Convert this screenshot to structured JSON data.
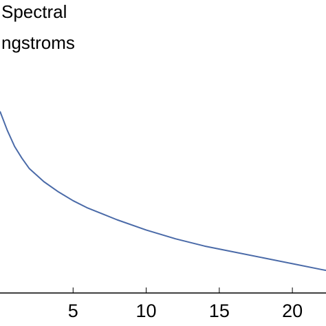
{
  "chart_data": {
    "type": "line",
    "title": "",
    "ylabel_lines": [
      "Spectral",
      "ngstroms"
    ],
    "xlabel": "",
    "x_ticks": [
      5,
      10,
      15,
      20
    ],
    "xlim": [
      0,
      22.3
    ],
    "ylim": [
      0,
      1
    ],
    "grid": false,
    "legend": "none",
    "series": [
      {
        "color": "#4a6aa8",
        "x": [
          0,
          0.5,
          1,
          1.5,
          2,
          3,
          4,
          5,
          6,
          7,
          8,
          10,
          12,
          14,
          16,
          18,
          20,
          22,
          22.3
        ],
        "y": [
          0.62,
          0.555,
          0.5,
          0.46,
          0.425,
          0.38,
          0.345,
          0.315,
          0.29,
          0.27,
          0.25,
          0.215,
          0.185,
          0.16,
          0.14,
          0.12,
          0.1,
          0.08,
          0.077
        ]
      }
    ]
  }
}
